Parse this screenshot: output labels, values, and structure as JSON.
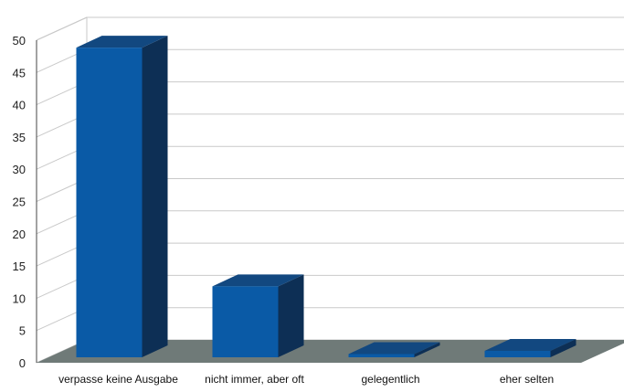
{
  "chart_data": {
    "type": "bar",
    "categories": [
      "verpasse keine Ausgabe",
      "nicht immer, aber oft",
      "gelegentlich",
      "eher selten"
    ],
    "values": [
      48,
      11,
      0.5,
      1
    ],
    "ylim": [
      0,
      50
    ],
    "yticks": [
      0,
      5,
      10,
      15,
      20,
      25,
      30,
      35,
      40,
      45,
      50
    ],
    "grid": true,
    "legend": "none",
    "style": "3d",
    "colors": {
      "bar_front": "#0a5aa6",
      "bar_side": "#0d2f55",
      "bar_top": "#124880",
      "floor": "#6f7a78",
      "grid": "#c9c9c9",
      "wall": "#ffffff"
    }
  }
}
